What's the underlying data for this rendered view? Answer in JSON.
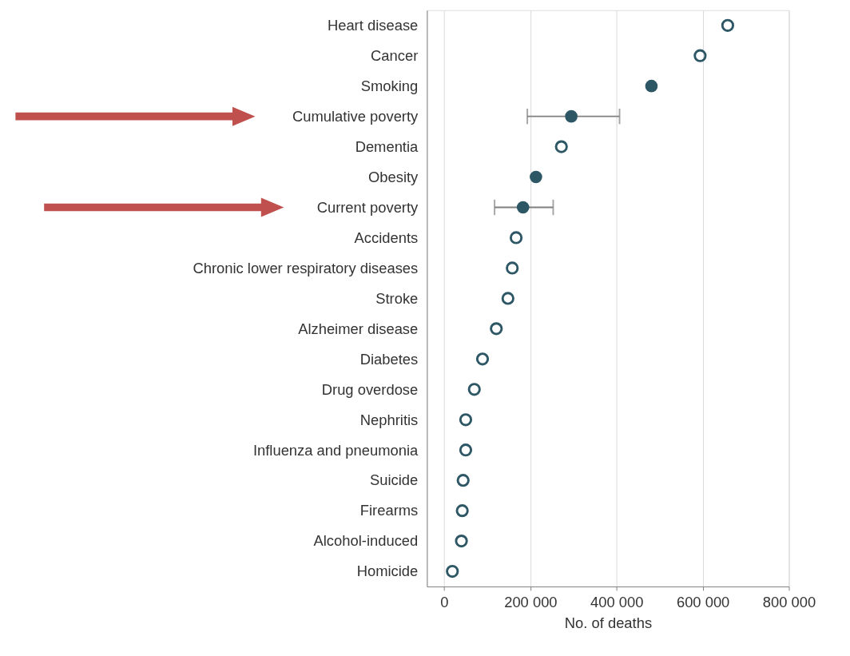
{
  "chart_data": {
    "type": "scatter",
    "xlabel": "No. of deaths",
    "categories": [
      "Heart disease",
      "Cancer",
      "Smoking",
      "Cumulative poverty",
      "Dementia",
      "Obesity",
      "Current poverty",
      "Accidents",
      "Chronic lower respiratory diseases",
      "Stroke",
      "Alzheimer disease",
      "Diabetes",
      "Drug overdose",
      "Nephritis",
      "Influenza and pneumonia",
      "Suicide",
      "Firearms",
      "Alcohol-induced",
      "Homicide"
    ],
    "series": [
      {
        "color": "#2e5766",
        "values": [
          658000,
          594000,
          null,
          null,
          272000,
          null,
          null,
          167000,
          158000,
          148000,
          121000,
          89000,
          70000,
          50000,
          50000,
          44000,
          42000,
          40000,
          19000
        ]
      },
      {
        "color": "#2e5766",
        "values": [
          null,
          null,
          481000,
          295000,
          null,
          213000,
          183000,
          null,
          null,
          null,
          null,
          null,
          null,
          null,
          null,
          null,
          null,
          null,
          null
        ],
        "errors": [
          null,
          null,
          null,
          [
            193000,
            407000
          ],
          null,
          null,
          [
            117000,
            253000
          ],
          null,
          null,
          null,
          null,
          null,
          null,
          null,
          null,
          null,
          null,
          null,
          null
        ]
      }
    ],
    "orientation": "horizontal",
    "xlim": [
      -40000,
      800000
    ],
    "xticks": [
      0,
      {
        "value": 200000,
        "label": "200 000"
      },
      {
        "value": 400000,
        "label": "400 000"
      },
      {
        "value": 600000,
        "label": "600 000"
      },
      {
        "value": 800000,
        "label": "800 000"
      }
    ],
    "grid": "x",
    "marker": "circle"
  }
}
